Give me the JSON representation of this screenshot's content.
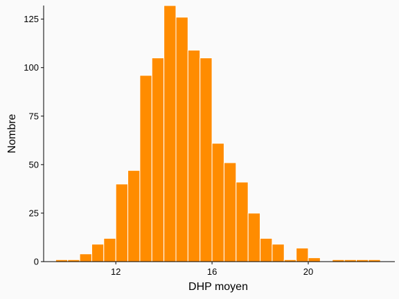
{
  "chart_data": {
    "type": "bar",
    "title": "",
    "xlabel": "DHP moyen",
    "ylabel": "Nombre",
    "bin_width": 0.5,
    "bin_starts": [
      9.5,
      10.0,
      10.5,
      11.0,
      11.5,
      12.0,
      12.5,
      13.0,
      13.5,
      14.0,
      14.5,
      15.0,
      15.5,
      16.0,
      16.5,
      17.0,
      17.5,
      18.0,
      18.5,
      19.0,
      19.5,
      20.0,
      20.5,
      21.0,
      21.5,
      22.0,
      22.5
    ],
    "values": [
      1,
      1,
      4,
      9,
      12,
      40,
      47,
      96,
      105,
      132,
      126,
      109,
      105,
      61,
      51,
      41,
      25,
      12,
      9,
      1,
      7,
      2,
      0,
      1,
      1,
      1,
      1
    ],
    "xlim": [
      9.0,
      23.6
    ],
    "ylim": [
      0,
      132
    ],
    "x_ticks": [
      12,
      16,
      20
    ],
    "y_ticks": [
      0,
      25,
      50,
      75,
      100,
      125
    ],
    "bar_color": "#ff8c00",
    "bar_edge_color": "#ffffff",
    "grid": false
  }
}
